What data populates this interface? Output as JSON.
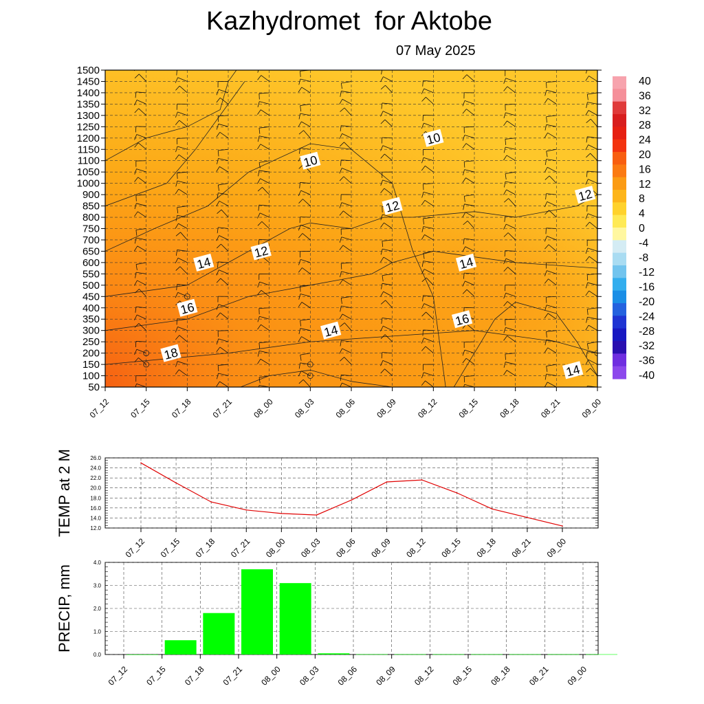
{
  "header": {
    "title": "Kazhydromet  for Aktobe",
    "date": "07 May 2025"
  },
  "chart_data": [
    {
      "type": "heatmap",
      "time_labels": [
        "07_12",
        "07_15",
        "07_18",
        "07_21",
        "08_00",
        "08_03",
        "08_06",
        "08_09",
        "08_12",
        "08_15",
        "08_18",
        "08_21",
        "09_00"
      ],
      "y_ticks": [
        "1500",
        "1450",
        "1400",
        "1350",
        "1300",
        "1250",
        "1200",
        "1150",
        "1100",
        "1050",
        "1000",
        "900",
        "850",
        "800",
        "750",
        "700",
        "650",
        "600",
        "550",
        "500",
        "450",
        "400",
        "350",
        "300",
        "250",
        "200",
        "150",
        "100",
        "50"
      ],
      "colorbar_ticks": [
        "40",
        "36",
        "32",
        "28",
        "24",
        "20",
        "16",
        "12",
        "8",
        "4",
        "0",
        "-4",
        "-8",
        "-12",
        "-16",
        "-20",
        "-24",
        "-28",
        "-32",
        "-36",
        "-40"
      ],
      "colorbar_colors": [
        "#f7a3ad",
        "#f58f99",
        "#e03a3a",
        "#d81e1e",
        "#e62012",
        "#f3330f",
        "#f85e10",
        "#fb7a12",
        "#fb9b14",
        "#fdb51a",
        "#ffd22c",
        "#ffea55",
        "#fff7a0",
        "#d4ecf4",
        "#a9dcf2",
        "#72c4ee",
        "#33aeee",
        "#1a8ee6",
        "#2462df",
        "#1f34d3",
        "#1818c2",
        "#2a0fb0",
        "#6f2ee0",
        "#8c48ec"
      ],
      "contour_labels": [
        {
          "text": "10",
          "t": 5.0,
          "level": 1100
        },
        {
          "text": "10",
          "t": 8.0,
          "level": 1200
        },
        {
          "text": "12",
          "t": 7.0,
          "level": 850
        },
        {
          "text": "12",
          "t": 11.7,
          "level": 900
        },
        {
          "text": "12",
          "t": 3.8,
          "level": 650
        },
        {
          "text": "14",
          "t": 2.4,
          "level": 600
        },
        {
          "text": "14",
          "t": 8.8,
          "level": 600
        },
        {
          "text": "14",
          "t": 5.5,
          "level": 300
        },
        {
          "text": "14",
          "t": 11.4,
          "level": 125
        },
        {
          "text": "16",
          "t": 2.0,
          "level": 400
        },
        {
          "text": "16",
          "t": 8.7,
          "level": 350
        },
        {
          "text": "18",
          "t": 1.6,
          "level": 200
        }
      ]
    },
    {
      "type": "line",
      "ylabel": "TEMP at 2 M",
      "x": [
        "07_12",
        "07_15",
        "07_18",
        "07_21",
        "08_00",
        "08_03",
        "08_06",
        "08_09",
        "08_12",
        "08_15",
        "08_18",
        "08_21",
        "09_00"
      ],
      "y_ticks": [
        "26.0",
        "24.0",
        "22.0",
        "20.0",
        "18.0",
        "16.0",
        "14.0",
        "12.0"
      ],
      "ylim": [
        12,
        26
      ],
      "series": [
        {
          "values": [
            25.0,
            21.0,
            17.2,
            15.6,
            14.9,
            14.6,
            17.6,
            21.2,
            21.6,
            19.0,
            15.8,
            14.1,
            12.4
          ],
          "color": "#e00000"
        }
      ]
    },
    {
      "type": "bar",
      "ylabel": "PRECIP, mm",
      "categories": [
        "07_12",
        "07_15",
        "07_18",
        "07_21",
        "08_00",
        "08_03",
        "08_06",
        "08_09",
        "08_12",
        "08_15",
        "08_18",
        "08_21",
        "09_00"
      ],
      "y_ticks": [
        "4.0",
        "3.0",
        "2.0",
        "1.0",
        "0.0"
      ],
      "ylim": [
        0,
        4
      ],
      "values": [
        0.0,
        0.62,
        1.8,
        3.7,
        3.1,
        0.05,
        0.01,
        0.01,
        0.01,
        0.01,
        0.01,
        0.01,
        0.01
      ],
      "color": "#00ff00"
    }
  ]
}
